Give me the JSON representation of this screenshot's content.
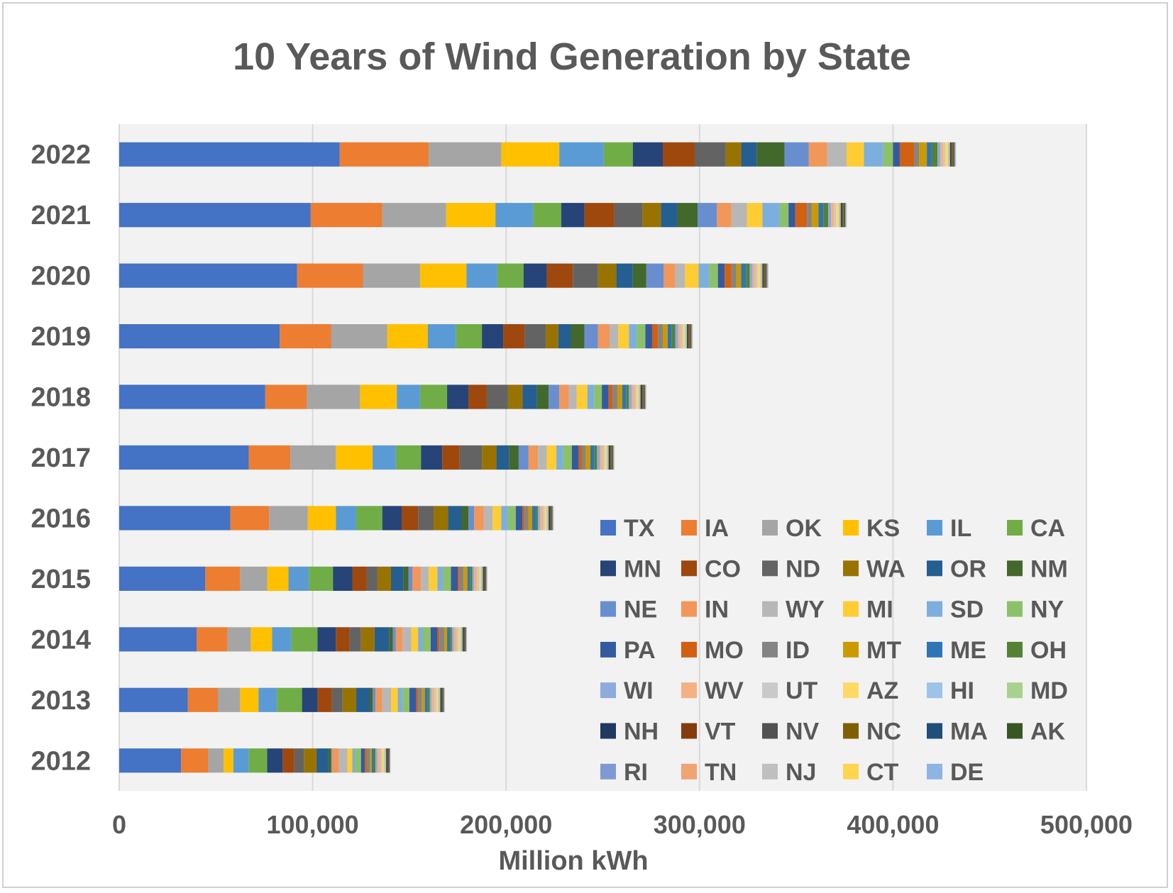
{
  "chart_data": {
    "type": "bar",
    "orientation": "horizontal",
    "stacked": true,
    "title": "10 Years of Wind Generation by State",
    "xlabel": "Million kWh",
    "ylabel": "",
    "xlim": [
      0,
      500000
    ],
    "x_ticks": [
      0,
      100000,
      200000,
      300000,
      400000,
      500000
    ],
    "x_tick_labels": [
      "0",
      "100,000",
      "200,000",
      "300,000",
      "400,000",
      "500,000"
    ],
    "grid": true,
    "legend_position": "bottom-right (inside plot)",
    "categories": [
      "2022",
      "2021",
      "2020",
      "2019",
      "2018",
      "2017",
      "2016",
      "2015",
      "2014",
      "2013",
      "2012"
    ],
    "series": [
      {
        "name": "TX",
        "color": "#4472C4",
        "values": [
          114000,
          99000,
          92000,
          83000,
          75500,
          67000,
          57500,
          44500,
          40000,
          35500,
          32000
        ]
      },
      {
        "name": "IA",
        "color": "#ED7D31",
        "values": [
          46000,
          37000,
          34000,
          26500,
          21500,
          21500,
          20000,
          18000,
          16000,
          15500,
          14000
        ]
      },
      {
        "name": "OK",
        "color": "#A5A5A5",
        "values": [
          37500,
          33000,
          29500,
          29000,
          27500,
          23500,
          20000,
          14000,
          12000,
          11500,
          8000
        ]
      },
      {
        "name": "KS",
        "color": "#FFC000",
        "values": [
          30000,
          25500,
          24000,
          21000,
          19000,
          19000,
          14500,
          11000,
          11000,
          9500,
          5000
        ]
      },
      {
        "name": "IL",
        "color": "#5B9BD5",
        "values": [
          23000,
          19500,
          16000,
          14500,
          12000,
          12000,
          10500,
          10500,
          10000,
          9500,
          8000
        ]
      },
      {
        "name": "CA",
        "color": "#70AD47",
        "values": [
          15000,
          14500,
          13500,
          13500,
          14000,
          13000,
          13500,
          12500,
          13500,
          13000,
          9500
        ]
      },
      {
        "name": "MN",
        "color": "#264478",
        "values": [
          15500,
          12000,
          12000,
          11000,
          11000,
          11000,
          10000,
          10000,
          9500,
          8000,
          8000
        ]
      },
      {
        "name": "CO",
        "color": "#9E480E",
        "values": [
          16500,
          15500,
          13500,
          11000,
          9500,
          9000,
          8500,
          7500,
          7000,
          7500,
          6000
        ]
      },
      {
        "name": "ND",
        "color": "#636363",
        "values": [
          16000,
          14500,
          13000,
          11000,
          11000,
          11500,
          8000,
          5500,
          6000,
          5500,
          5000
        ]
      },
      {
        "name": "WA",
        "color": "#997300",
        "values": [
          8000,
          9500,
          9500,
          6500,
          7500,
          7500,
          7500,
          7000,
          7000,
          7000,
          6500
        ]
      },
      {
        "name": "OR",
        "color": "#255E91",
        "values": [
          8000,
          8500,
          8500,
          6500,
          7500,
          6500,
          7000,
          6500,
          7500,
          7000,
          6000
        ]
      },
      {
        "name": "NM",
        "color": "#43682B",
        "values": [
          14500,
          10500,
          7000,
          7000,
          6000,
          5000,
          3500,
          2500,
          2000,
          1500,
          1500
        ]
      },
      {
        "name": "NE",
        "color": "#698ED0",
        "values": [
          12500,
          10000,
          9000,
          7000,
          5500,
          5000,
          3000,
          2000,
          1500,
          1500,
          500
        ]
      },
      {
        "name": "IN",
        "color": "#F1975A",
        "values": [
          9500,
          7500,
          6000,
          6000,
          5000,
          5000,
          5000,
          4500,
          3500,
          3500,
          3500
        ]
      },
      {
        "name": "WY",
        "color": "#B7B7B7",
        "values": [
          10000,
          8000,
          5000,
          4500,
          4000,
          4500,
          4500,
          4000,
          4500,
          4500,
          4500
        ]
      },
      {
        "name": "MI",
        "color": "#FFCD33",
        "values": [
          9000,
          8000,
          7000,
          5500,
          5500,
          5000,
          4500,
          4500,
          3500,
          3500,
          2500
        ]
      },
      {
        "name": "SD",
        "color": "#7CAFDD",
        "values": [
          10000,
          9000,
          5500,
          4000,
          3500,
          3500,
          3500,
          3000,
          2500,
          2500,
          1500
        ]
      },
      {
        "name": "NY",
        "color": "#8CC168",
        "values": [
          5000,
          4500,
          4500,
          4500,
          4000,
          4500,
          4000,
          4000,
          4000,
          3500,
          3000
        ]
      },
      {
        "name": "PA",
        "color": "#335AA1",
        "values": [
          3500,
          3500,
          3500,
          3500,
          3500,
          3500,
          3500,
          3500,
          3500,
          3500,
          2000
        ]
      },
      {
        "name": "MO",
        "color": "#D26012",
        "values": [
          7500,
          6000,
          3500,
          3000,
          2000,
          1500,
          1000,
          1000,
          1000,
          1000,
          1000
        ]
      },
      {
        "name": "ID",
        "color": "#848484",
        "values": [
          2500,
          2500,
          2500,
          2500,
          2500,
          2000,
          2000,
          2000,
          2500,
          2000,
          1500
        ]
      },
      {
        "name": "MT",
        "color": "#CC9A00",
        "values": [
          4000,
          3500,
          2500,
          2500,
          2500,
          2500,
          2000,
          2000,
          1500,
          1500,
          1000
        ]
      },
      {
        "name": "ME",
        "color": "#2E75B6",
        "values": [
          2500,
          2500,
          2500,
          2000,
          2000,
          2000,
          2000,
          1500,
          1500,
          1500,
          1000
        ]
      },
      {
        "name": "OH",
        "color": "#548235",
        "values": [
          3000,
          2500,
          2000,
          2000,
          1500,
          1500,
          1000,
          1000,
          1000,
          1000,
          1000
        ]
      },
      {
        "name": "WI",
        "color": "#8FAADC",
        "values": [
          1500,
          1500,
          1500,
          1500,
          1500,
          1500,
          1000,
          1000,
          1000,
          1000,
          1000
        ]
      },
      {
        "name": "WV",
        "color": "#F4B183",
        "values": [
          1500,
          1500,
          1500,
          1500,
          1500,
          1500,
          1500,
          1500,
          1500,
          1500,
          1500
        ]
      },
      {
        "name": "UT",
        "color": "#C9C9C9",
        "values": [
          1000,
          1000,
          1000,
          1000,
          1000,
          1000,
          1000,
          1000,
          1000,
          1000,
          1000
        ]
      },
      {
        "name": "AZ",
        "color": "#FFD966",
        "values": [
          1500,
          1500,
          1500,
          1000,
          1000,
          1000,
          1000,
          1000,
          1000,
          1000,
          1000
        ]
      },
      {
        "name": "HI",
        "color": "#9DC3E6",
        "values": [
          500,
          500,
          500,
          500,
          500,
          500,
          500,
          500,
          500,
          500,
          500
        ]
      },
      {
        "name": "MD",
        "color": "#A9D18E",
        "values": [
          500,
          500,
          500,
          500,
          500,
          500,
          500,
          500,
          500,
          500,
          500
        ]
      },
      {
        "name": "NH",
        "color": "#1F3864",
        "values": [
          500,
          500,
          500,
          500,
          500,
          500,
          500,
          500,
          500,
          500,
          500
        ]
      },
      {
        "name": "VT",
        "color": "#843C0C",
        "values": [
          500,
          500,
          500,
          500,
          500,
          500,
          500,
          500,
          500,
          500,
          500
        ]
      },
      {
        "name": "NV",
        "color": "#525252",
        "values": [
          300,
          300,
          300,
          300,
          300,
          300,
          300,
          300,
          300,
          300,
          300
        ]
      },
      {
        "name": "NC",
        "color": "#7F6000",
        "values": [
          500,
          500,
          500,
          500,
          500,
          500,
          200,
          0,
          0,
          0,
          0
        ]
      },
      {
        "name": "MA",
        "color": "#1F4E79",
        "values": [
          300,
          300,
          300,
          300,
          300,
          300,
          300,
          300,
          300,
          300,
          300
        ]
      },
      {
        "name": "AK",
        "color": "#375623",
        "values": [
          200,
          200,
          200,
          200,
          200,
          200,
          200,
          200,
          200,
          200,
          200
        ]
      },
      {
        "name": "RI",
        "color": "#7F9AD3",
        "values": [
          300,
          300,
          300,
          200,
          200,
          200,
          100,
          0,
          0,
          0,
          0
        ]
      },
      {
        "name": "TN",
        "color": "#F0A472",
        "values": [
          100,
          100,
          100,
          100,
          100,
          100,
          100,
          100,
          100,
          100,
          100
        ]
      },
      {
        "name": "NJ",
        "color": "#BFBFBF",
        "values": [
          100,
          100,
          100,
          100,
          100,
          100,
          100,
          100,
          100,
          100,
          100
        ]
      },
      {
        "name": "CT",
        "color": "#FFD54F",
        "values": [
          100,
          100,
          100,
          100,
          100,
          100,
          100,
          100,
          100,
          100,
          100
        ]
      },
      {
        "name": "DE",
        "color": "#8EB4E3",
        "values": [
          100,
          100,
          100,
          100,
          100,
          100,
          100,
          100,
          100,
          100,
          100
        ]
      }
    ]
  }
}
